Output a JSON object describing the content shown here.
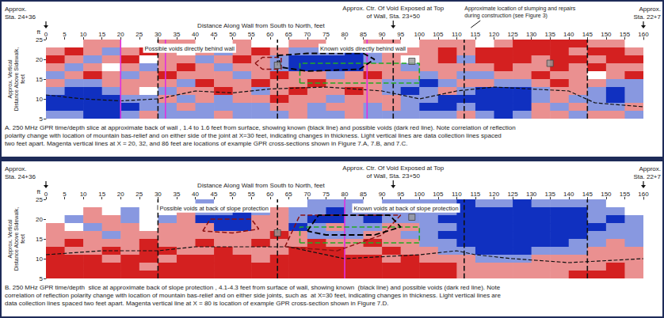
{
  "chart_data": [
    {
      "type": "heatmap",
      "header": {
        "left": "Approx. Sta. 24+36",
        "center": {
          "text": "Approx. Ctr. Of Void Exposed at Top of Wall, Sta. 23+50",
          "x": 93
        },
        "right": "Approx. Sta. 22+7",
        "note": "Approximate location of slumping and repairs during construction (see Figure 3)"
      },
      "xlabel": "Distance Along Wall from South to North, feet",
      "ylabel": "Approx. Vertical Distance Above Sidewalk, feet",
      "unit": "ft",
      "xlim": [
        0,
        160
      ],
      "xticks": [
        0,
        5,
        10,
        15,
        20,
        25,
        30,
        35,
        40,
        45,
        50,
        55,
        60,
        65,
        70,
        75,
        80,
        85,
        90,
        95,
        100,
        105,
        110,
        115,
        120,
        125,
        130,
        135,
        140,
        145,
        150,
        155,
        160
      ],
      "ylim": [
        5,
        25
      ],
      "yticks": [
        5,
        10,
        15,
        20,
        25
      ],
      "x_edges": [
        0,
        5,
        10,
        15,
        20,
        25,
        30,
        35,
        40,
        45,
        50,
        55,
        60,
        65,
        70,
        75,
        80,
        85,
        90,
        95,
        100,
        105,
        110,
        115,
        120,
        125,
        130,
        135,
        140,
        145,
        150,
        155,
        160
      ],
      "y_edges": [
        25,
        23,
        21,
        19,
        17,
        15,
        13,
        11,
        9,
        7,
        5
      ],
      "color_range": [
        -2,
        2
      ],
      "cells": [
        [
          0,
          0,
          1,
          1,
          0,
          0,
          1,
          1,
          0,
          0,
          1,
          0,
          0,
          1,
          1,
          0,
          0,
          1,
          1,
          0,
          1,
          1,
          1,
          0,
          1,
          2,
          2,
          2,
          2,
          1,
          1,
          0
        ],
        [
          1,
          2,
          1,
          -1,
          1,
          2,
          1,
          0,
          1,
          -1,
          1,
          2,
          1,
          -1,
          -1,
          -1,
          -2,
          -1,
          1,
          1,
          1,
          2,
          1,
          2,
          2,
          2,
          2,
          2,
          1,
          2,
          2,
          1
        ],
        [
          2,
          1,
          -1,
          1,
          2,
          0,
          1,
          1,
          -1,
          1,
          2,
          1,
          -1,
          -2,
          -2,
          -2,
          -2,
          -1,
          1,
          0,
          1,
          2,
          -1,
          2,
          2,
          2,
          1,
          2,
          2,
          1,
          2,
          2
        ],
        [
          1,
          -1,
          1,
          0,
          1,
          -1,
          1,
          2,
          1,
          -1,
          1,
          1,
          -1,
          -2,
          -2,
          -2,
          -2,
          1,
          1,
          -1,
          1,
          1,
          1,
          1,
          2,
          1,
          1,
          2,
          1,
          2,
          1,
          1
        ],
        [
          -1,
          1,
          2,
          1,
          -1,
          1,
          2,
          1,
          1,
          1,
          -1,
          1,
          2,
          1,
          1,
          -1,
          1,
          2,
          1,
          1,
          -1,
          1,
          -1,
          -1,
          1,
          1,
          2,
          1,
          1,
          0,
          1,
          2
        ],
        [
          1,
          -1,
          -1,
          1,
          1,
          1,
          1,
          -1,
          2,
          1,
          1,
          2,
          1,
          1,
          2,
          1,
          1,
          1,
          -1,
          -1,
          -2,
          -1,
          1,
          1,
          -1,
          -1,
          1,
          2,
          1,
          1,
          -1,
          -1
        ],
        [
          -1,
          -2,
          -2,
          -1,
          1,
          0,
          -1,
          1,
          1,
          2,
          1,
          -1,
          1,
          2,
          1,
          1,
          2,
          1,
          -1,
          -2,
          -1,
          1,
          -1,
          -2,
          -2,
          -2,
          -1,
          1,
          1,
          -1,
          -2,
          -1
        ],
        [
          -2,
          -2,
          -2,
          -2,
          -1,
          -1,
          1,
          -1,
          1,
          -1,
          1,
          1,
          2,
          1,
          1,
          -1,
          1,
          1,
          1,
          -1,
          -1,
          -2,
          -2,
          -2,
          -2,
          -2,
          -1,
          1,
          -1,
          -1,
          -2,
          -1
        ],
        [
          -2,
          -2,
          -2,
          -2,
          -2,
          -1,
          -1,
          1,
          -1,
          -1,
          -1,
          -1,
          1,
          1,
          -1,
          1,
          1,
          -1,
          1,
          -1,
          -2,
          -2,
          -1,
          -2,
          -2,
          -2,
          1,
          -1,
          1,
          -1,
          -1,
          1
        ],
        [
          -1,
          -1,
          -2,
          -2,
          -1,
          1,
          -1,
          -1,
          -1,
          1,
          -1,
          -1,
          -1,
          1,
          -1,
          -1,
          1,
          -1,
          -1,
          -1,
          -1,
          -1,
          1,
          -1,
          -2,
          -1,
          1,
          1,
          -1,
          1,
          1,
          -1
        ]
      ],
      "joint_lines": [
        30,
        62,
        93,
        112,
        145
      ],
      "section_lines": [
        20,
        32,
        86
      ],
      "markers": [
        [
          62,
          18.5
        ],
        [
          98,
          19.5
        ],
        [
          135,
          19
        ]
      ],
      "known_voids": [
        [
          [
            62,
            21
          ],
          [
            70,
            21.5
          ],
          [
            85,
            21.5
          ],
          [
            88,
            20
          ],
          [
            84,
            17.5
          ],
          [
            70,
            17
          ],
          [
            63,
            18
          ],
          [
            62,
            21
          ]
        ]
      ],
      "possible_voids": [
        [
          [
            56,
            19
          ],
          [
            58,
            20.5
          ],
          [
            63,
            20.5
          ],
          [
            63,
            17.5
          ],
          [
            58,
            17.5
          ],
          [
            56,
            19
          ]
        ]
      ],
      "slump_area": [
        [
          68,
          14
        ],
        [
          100,
          14
        ],
        [
          100,
          19
        ],
        [
          68,
          19
        ],
        [
          68,
          14
        ]
      ],
      "base_line": [
        [
          0,
          11
        ],
        [
          10,
          10
        ],
        [
          20,
          9.5
        ],
        [
          30,
          10
        ],
        [
          40,
          12
        ],
        [
          50,
          11.5
        ],
        [
          60,
          12.5
        ],
        [
          75,
          13
        ],
        [
          90,
          12
        ],
        [
          100,
          10
        ],
        [
          110,
          12
        ],
        [
          120,
          13
        ],
        [
          140,
          12
        ],
        [
          147,
          9
        ],
        [
          160,
          8
        ]
      ],
      "annotations": [
        {
          "text": "Possible voids directly behind wall",
          "x": 26,
          "y": 22.8
        },
        {
          "text": "Known voids directly behind wall",
          "x": 73,
          "y": 22.8
        }
      ],
      "caption": "A. 250 MHz GPR time/depth slice at approximate back of wall , 1.4 to 1.6 feet from surface, showing known (black line) and possible voids (dark red line). Note correlation of reflection polarity change with location of mountain bas-relief and on either side of the joint at X=30 feet, indicating changes in thickness. Light vertical lines are data collection lines spaced two feet apart. Magenta vertical lines at X = 20, 32, and 86 feet are locations of example GPR cross-sections shown in Figure 7.A, 7.B, and 7.C."
    },
    {
      "type": "heatmap",
      "header": {
        "left": "Approx. Sta. 24+36",
        "center": {
          "text": "Approx. Ctr. Of Void Exposed at Top of Wall, Sta. 23+50",
          "x": 93
        },
        "right": "Approx. Sta. 22+7"
      },
      "xlabel": "Distance Along Wall from South to North, feet",
      "ylabel": "Approx. Vertical Distance Above Sidewalk, feet",
      "unit": "ft",
      "xlim": [
        0,
        160
      ],
      "xticks": [
        0,
        5,
        10,
        15,
        20,
        25,
        30,
        35,
        40,
        45,
        50,
        55,
        60,
        65,
        70,
        75,
        80,
        85,
        90,
        95,
        100,
        105,
        110,
        115,
        120,
        125,
        130,
        135,
        140,
        145,
        150,
        155,
        160
      ],
      "ylim": [
        5,
        25
      ],
      "yticks": [
        5,
        10,
        15,
        20,
        25
      ],
      "x_edges": [
        0,
        5,
        10,
        15,
        20,
        25,
        30,
        35,
        40,
        45,
        50,
        55,
        60,
        65,
        70,
        75,
        80,
        85,
        90,
        95,
        100,
        105,
        110,
        115,
        120,
        125,
        130,
        135,
        140,
        145,
        150,
        155,
        160
      ],
      "y_edges": [
        25,
        23,
        21,
        19,
        17,
        15,
        13,
        11,
        9,
        7,
        5
      ],
      "color_range": [
        -2,
        2
      ],
      "cells": [
        [
          0,
          0,
          0,
          0,
          0,
          0,
          0,
          0,
          -1,
          0,
          0,
          0,
          0,
          0,
          -1,
          -1,
          -1,
          0,
          -1,
          -1,
          -1,
          -1,
          -2,
          -1,
          -1,
          -2,
          -1,
          -1,
          -1,
          -1,
          0,
          0
        ],
        [
          0,
          0,
          1,
          0,
          -1,
          0,
          0,
          1,
          -1,
          -1,
          -2,
          -1,
          1,
          -1,
          -1,
          -2,
          -1,
          -1,
          -1,
          -1,
          -1,
          -1,
          -2,
          -2,
          -2,
          -2,
          -2,
          -2,
          -2,
          -1,
          -1,
          0
        ],
        [
          0,
          -1,
          1,
          1,
          -1,
          0,
          -1,
          1,
          -2,
          -2,
          -2,
          1,
          1,
          -1,
          -2,
          -2,
          -1,
          -2,
          -1,
          -1,
          -1,
          -2,
          -2,
          -2,
          -2,
          -2,
          -2,
          -2,
          -2,
          -1,
          -2,
          -1
        ],
        [
          1,
          0,
          -1,
          1,
          1,
          0,
          1,
          1,
          1,
          -2,
          -2,
          1,
          1,
          -2,
          -1,
          1,
          -1,
          -1,
          1,
          1,
          -1,
          -1,
          -2,
          -2,
          -2,
          -2,
          -2,
          -2,
          -2,
          -2,
          -1,
          -1
        ],
        [
          1,
          1,
          1,
          -1,
          1,
          1,
          1,
          1,
          1,
          1,
          1,
          1,
          2,
          1,
          -1,
          -1,
          -1,
          1,
          1,
          -1,
          -1,
          -2,
          -2,
          -2,
          -2,
          -2,
          -2,
          -2,
          -2,
          -1,
          -1,
          -1
        ],
        [
          1,
          2,
          1,
          1,
          1,
          2,
          1,
          1,
          2,
          1,
          1,
          2,
          1,
          1,
          2,
          1,
          1,
          2,
          1,
          1,
          -1,
          -1,
          -2,
          -2,
          -2,
          -2,
          -2,
          -2,
          -1,
          -1,
          1,
          -1
        ],
        [
          2,
          1,
          1,
          2,
          1,
          2,
          2,
          1,
          1,
          2,
          1,
          1,
          1,
          2,
          2,
          2,
          1,
          1,
          2,
          1,
          1,
          -1,
          -1,
          -2,
          -2,
          -2,
          -1,
          -1,
          -1,
          1,
          1,
          1
        ],
        [
          2,
          2,
          2,
          1,
          2,
          2,
          1,
          2,
          2,
          2,
          2,
          1,
          2,
          2,
          2,
          2,
          2,
          2,
          1,
          2,
          1,
          1,
          1,
          -1,
          -1,
          -1,
          1,
          1,
          1,
          1,
          1,
          1
        ],
        [
          2,
          2,
          2,
          2,
          2,
          1,
          2,
          2,
          2,
          2,
          2,
          2,
          2,
          2,
          2,
          2,
          2,
          2,
          2,
          2,
          2,
          2,
          1,
          1,
          1,
          1,
          1,
          1,
          1,
          1,
          2,
          1
        ],
        [
          2,
          2,
          2,
          2,
          2,
          2,
          2,
          2,
          2,
          2,
          2,
          2,
          2,
          2,
          2,
          2,
          2,
          2,
          2,
          2,
          2,
          2,
          1,
          1,
          1,
          1,
          1,
          1,
          2,
          2,
          2,
          1
        ]
      ],
      "joint_lines": [
        30,
        62,
        112,
        145
      ],
      "section_lines": [
        80
      ],
      "markers": [
        [
          62,
          16.5
        ],
        [
          98,
          20.5
        ]
      ],
      "known_voids": [
        [
          [
            70,
            17
          ],
          [
            73,
            21
          ],
          [
            92,
            21
          ],
          [
            95,
            18
          ],
          [
            88,
            16
          ],
          [
            75,
            16
          ],
          [
            70,
            17
          ]
        ]
      ],
      "possible_voids": [
        [
          [
            42,
            17
          ],
          [
            44,
            20
          ],
          [
            55,
            20
          ],
          [
            57,
            17.5
          ],
          [
            50,
            16.5
          ],
          [
            42,
            17
          ]
        ],
        [
          [
            64,
            13
          ],
          [
            68,
            21
          ],
          [
            95,
            21
          ],
          [
            90,
            16
          ],
          [
            78,
            12
          ],
          [
            64,
            13
          ]
        ]
      ],
      "slump_area": [
        [
          68,
          14
        ],
        [
          100,
          14
        ],
        [
          100,
          18
        ],
        [
          68,
          18
        ],
        [
          68,
          14
        ]
      ],
      "base_line": [
        [
          0,
          11
        ],
        [
          15,
          12
        ],
        [
          30,
          12
        ],
        [
          40,
          13
        ],
        [
          55,
          13
        ],
        [
          65,
          13
        ],
        [
          80,
          10
        ],
        [
          100,
          11
        ],
        [
          110,
          12
        ],
        [
          115,
          11
        ],
        [
          125,
          10
        ],
        [
          140,
          9
        ],
        [
          160,
          10
        ]
      ],
      "annotations": [
        {
          "text": "Possible voids at back of slope protection",
          "x": 30,
          "y": 22.8
        },
        {
          "text": "Known voids at back of slope protection",
          "x": 82,
          "y": 22.8
        }
      ],
      "caption": "B. 250 MHz GPR time/depth  slice at approximate back of slope protection , 4.1-4.3 feet from surface of wall, showing known  (black line) and possible voids (dark red line). Note correlation of reflection polarity change with location of mountain bas-relief and on either side joints, such as  at X=30 feet, indicating changes in thickness. Light vertical lines are data collection lines spaced two feet apart. Magenta vertical line at X = 80 is location of example GPR cross-section shown in Figure 7.D."
    }
  ]
}
